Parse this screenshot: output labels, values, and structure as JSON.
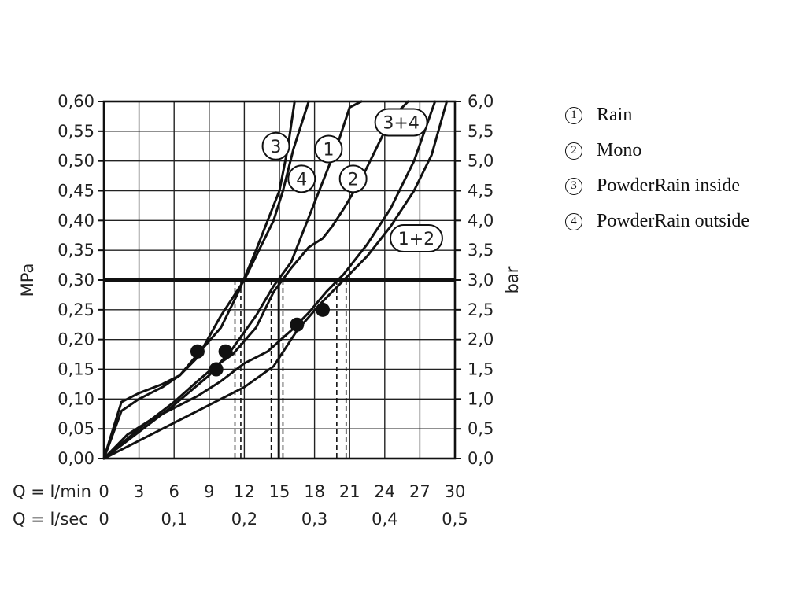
{
  "chart_data": {
    "type": "line",
    "x_ticks_lmin": [
      "0",
      "3",
      "6",
      "9",
      "12",
      "15",
      "18",
      "21",
      "24",
      "27",
      "30"
    ],
    "x_ticks_lsec": [
      "0",
      "0,1",
      "0,2",
      "0,3",
      "0,4",
      "0,5"
    ],
    "x_ticks_lsec_values": [
      0,
      6,
      12,
      18,
      24,
      30
    ],
    "x_label_lmin": "Q = l/min",
    "x_label_lsec": "Q = l/sec",
    "y_left_ticks": [
      "0,00",
      "0,05",
      "0,10",
      "0,15",
      "0,20",
      "0,25",
      "0,30",
      "0,35",
      "0,40",
      "0,45",
      "0,50",
      "0,55",
      "0,60"
    ],
    "y_right_ticks": [
      "0,0",
      "0,5",
      "1,0",
      "1,5",
      "2,0",
      "2,5",
      "3,0",
      "3,5",
      "4,0",
      "4,5",
      "5,0",
      "5,5",
      "6,0"
    ],
    "y_left_label": "MPa",
    "y_right_label": "bar",
    "xlim": [
      0,
      30
    ],
    "ylim": [
      0,
      0.6
    ],
    "grid": true,
    "reference_line_mpa": 0.3,
    "series": [
      {
        "name": "1",
        "label": "1",
        "label_at": [
          19.2,
          0.52
        ],
        "x": [
          0,
          3,
          6,
          9,
          11,
          13,
          14.5,
          16,
          17,
          18,
          19,
          20,
          21,
          22
        ],
        "y": [
          0,
          0.045,
          0.09,
          0.14,
          0.185,
          0.24,
          0.29,
          0.33,
          0.38,
          0.43,
          0.48,
          0.53,
          0.59,
          0.6
        ]
      },
      {
        "name": "2",
        "label": "2",
        "label_at": [
          21.3,
          0.47
        ],
        "x": [
          0,
          3,
          6,
          8,
          9.5,
          11,
          13,
          14.5,
          16,
          17.5,
          18.7,
          19.5,
          20.5,
          22,
          24.5,
          26
        ],
        "y": [
          0,
          0.05,
          0.095,
          0.13,
          0.155,
          0.175,
          0.22,
          0.28,
          0.32,
          0.355,
          0.37,
          0.39,
          0.42,
          0.47,
          0.57,
          0.6
        ]
      },
      {
        "name": "3",
        "label": "3",
        "label_at": [
          14.7,
          0.525
        ],
        "x": [
          0,
          1.5,
          3,
          5,
          6.5,
          8,
          10,
          11.5,
          13,
          14,
          15,
          15.7,
          16.3
        ],
        "y": [
          0,
          0.095,
          0.11,
          0.125,
          0.14,
          0.175,
          0.22,
          0.28,
          0.35,
          0.4,
          0.45,
          0.52,
          0.6
        ]
      },
      {
        "name": "4",
        "label": "4",
        "label_at": [
          16.9,
          0.47
        ],
        "x": [
          0,
          1.5,
          3,
          5,
          6.5,
          8,
          10,
          12,
          13.5,
          14.5,
          15.3,
          16.2,
          17.5
        ],
        "y": [
          0,
          0.08,
          0.1,
          0.12,
          0.14,
          0.17,
          0.24,
          0.3,
          0.36,
          0.4,
          0.45,
          0.52,
          0.6
        ]
      },
      {
        "name": "1+2",
        "label": "1+2",
        "label_at": [
          26.7,
          0.37
        ],
        "x": [
          0,
          3,
          6,
          9,
          12,
          14.5,
          16.5,
          18.5,
          20.5,
          22.5,
          24.5,
          26.5,
          28,
          29.3
        ],
        "y": [
          0,
          0.03,
          0.06,
          0.09,
          0.12,
          0.155,
          0.215,
          0.26,
          0.3,
          0.34,
          0.39,
          0.45,
          0.51,
          0.6
        ]
      },
      {
        "name": "3+4",
        "label": "3+4",
        "label_at": [
          25.4,
          0.565
        ],
        "x": [
          0,
          2,
          4,
          6,
          8,
          10,
          12,
          14,
          16,
          17.5,
          19,
          20.5,
          22.5,
          24.5,
          26.5,
          28.3
        ],
        "y": [
          0,
          0.04,
          0.065,
          0.085,
          0.105,
          0.13,
          0.16,
          0.18,
          0.215,
          0.245,
          0.28,
          0.31,
          0.36,
          0.42,
          0.5,
          0.6
        ]
      }
    ],
    "markers": [
      {
        "x": 8,
        "y": 0.18
      },
      {
        "x": 10.4,
        "y": 0.18
      },
      {
        "x": 9.6,
        "y": 0.15
      },
      {
        "x": 16.5,
        "y": 0.225
      },
      {
        "x": 18.7,
        "y": 0.25
      }
    ],
    "dashed_x_lines": [
      11.2,
      11.7,
      14.3,
      15.3,
      19.9,
      20.7
    ],
    "solid_x_lines": [
      14.9
    ]
  },
  "legend": {
    "items": [
      {
        "num": "1",
        "text": "Rain"
      },
      {
        "num": "2",
        "text": "Mono"
      },
      {
        "num": "3",
        "text": "PowderRain inside"
      },
      {
        "num": "4",
        "text": "PowderRain outside"
      }
    ]
  }
}
